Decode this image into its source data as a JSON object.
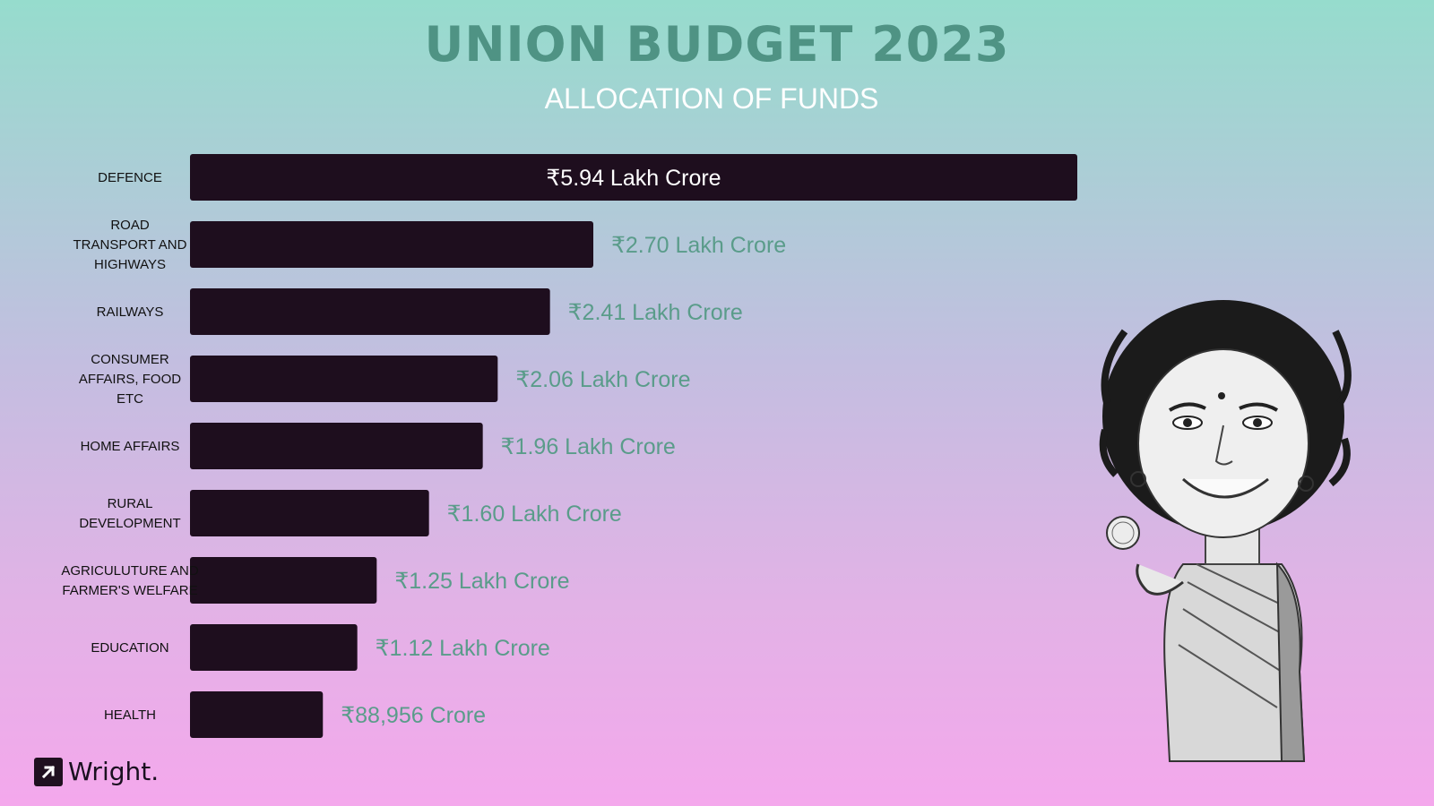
{
  "header": {
    "title": "UNION BUDGET 2023",
    "subtitle": "ALLOCATION OF FUNDS"
  },
  "colors": {
    "bar": "#1e0e1e",
    "title": "#4f9384",
    "value_outside": "#5a9c8a",
    "value_inside": "#ffffff"
  },
  "chart_data": {
    "type": "bar",
    "orientation": "horizontal",
    "title": "UNION BUDGET 2023",
    "subtitle": "ALLOCATION OF FUNDS",
    "categories": [
      [
        "DEFENCE"
      ],
      [
        "ROAD",
        "TRANSPORT AND",
        "HIGHWAYS"
      ],
      [
        "RAILWAYS"
      ],
      [
        "CONSUMER",
        "AFFAIRS, FOOD",
        "ETC"
      ],
      [
        "HOME AFFAIRS"
      ],
      [
        "RURAL",
        "DEVELOPMENT"
      ],
      [
        "AGRICULUTURE AND",
        "FARMER'S WELFARE"
      ],
      [
        "EDUCATION"
      ],
      [
        "HEALTH"
      ]
    ],
    "values": [
      5.94,
      2.7,
      2.41,
      2.06,
      1.96,
      1.6,
      1.25,
      1.12,
      0.88956
    ],
    "unit": "Lakh Crore",
    "value_labels": [
      "₹5.94 Lakh Crore",
      "₹2.70 Lakh Crore",
      "₹2.41 Lakh Crore",
      "₹2.06 Lakh Crore",
      "₹1.96 Lakh Crore",
      "₹1.60 Lakh Crore",
      "₹1.25 Lakh Crore",
      "₹1.12 Lakh Crore",
      "₹88,956 Crore"
    ],
    "grid": false,
    "xlim": [
      0,
      5.94
    ]
  },
  "logo": {
    "text": "Wright."
  },
  "illustration": {
    "name": "finance-minister-caricature"
  }
}
